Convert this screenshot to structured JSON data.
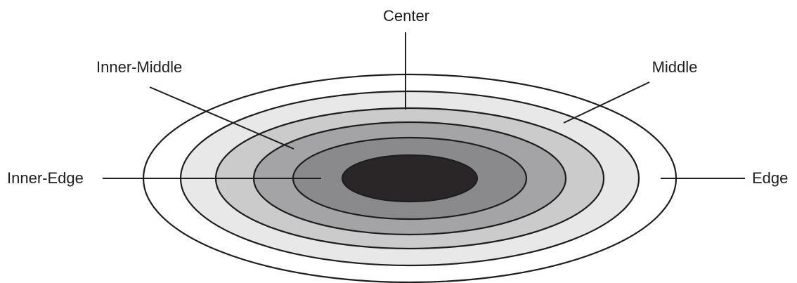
{
  "diagram": {
    "labels": {
      "center": "Center",
      "inner_middle": "Inner-Middle",
      "middle": "Middle",
      "inner_edge": "Inner-Edge",
      "edge": "Edge"
    },
    "ring_colors": {
      "outer": "#ffffff",
      "ring_2": "#e8e8e8",
      "ring_3": "#cbcbcb",
      "ring_4": "#a4a4a7",
      "ring_5": "#8a8a8d",
      "ring_6": "#7a7a7d",
      "core": "#2a2627"
    },
    "stroke_color": "#1e1e1e"
  }
}
